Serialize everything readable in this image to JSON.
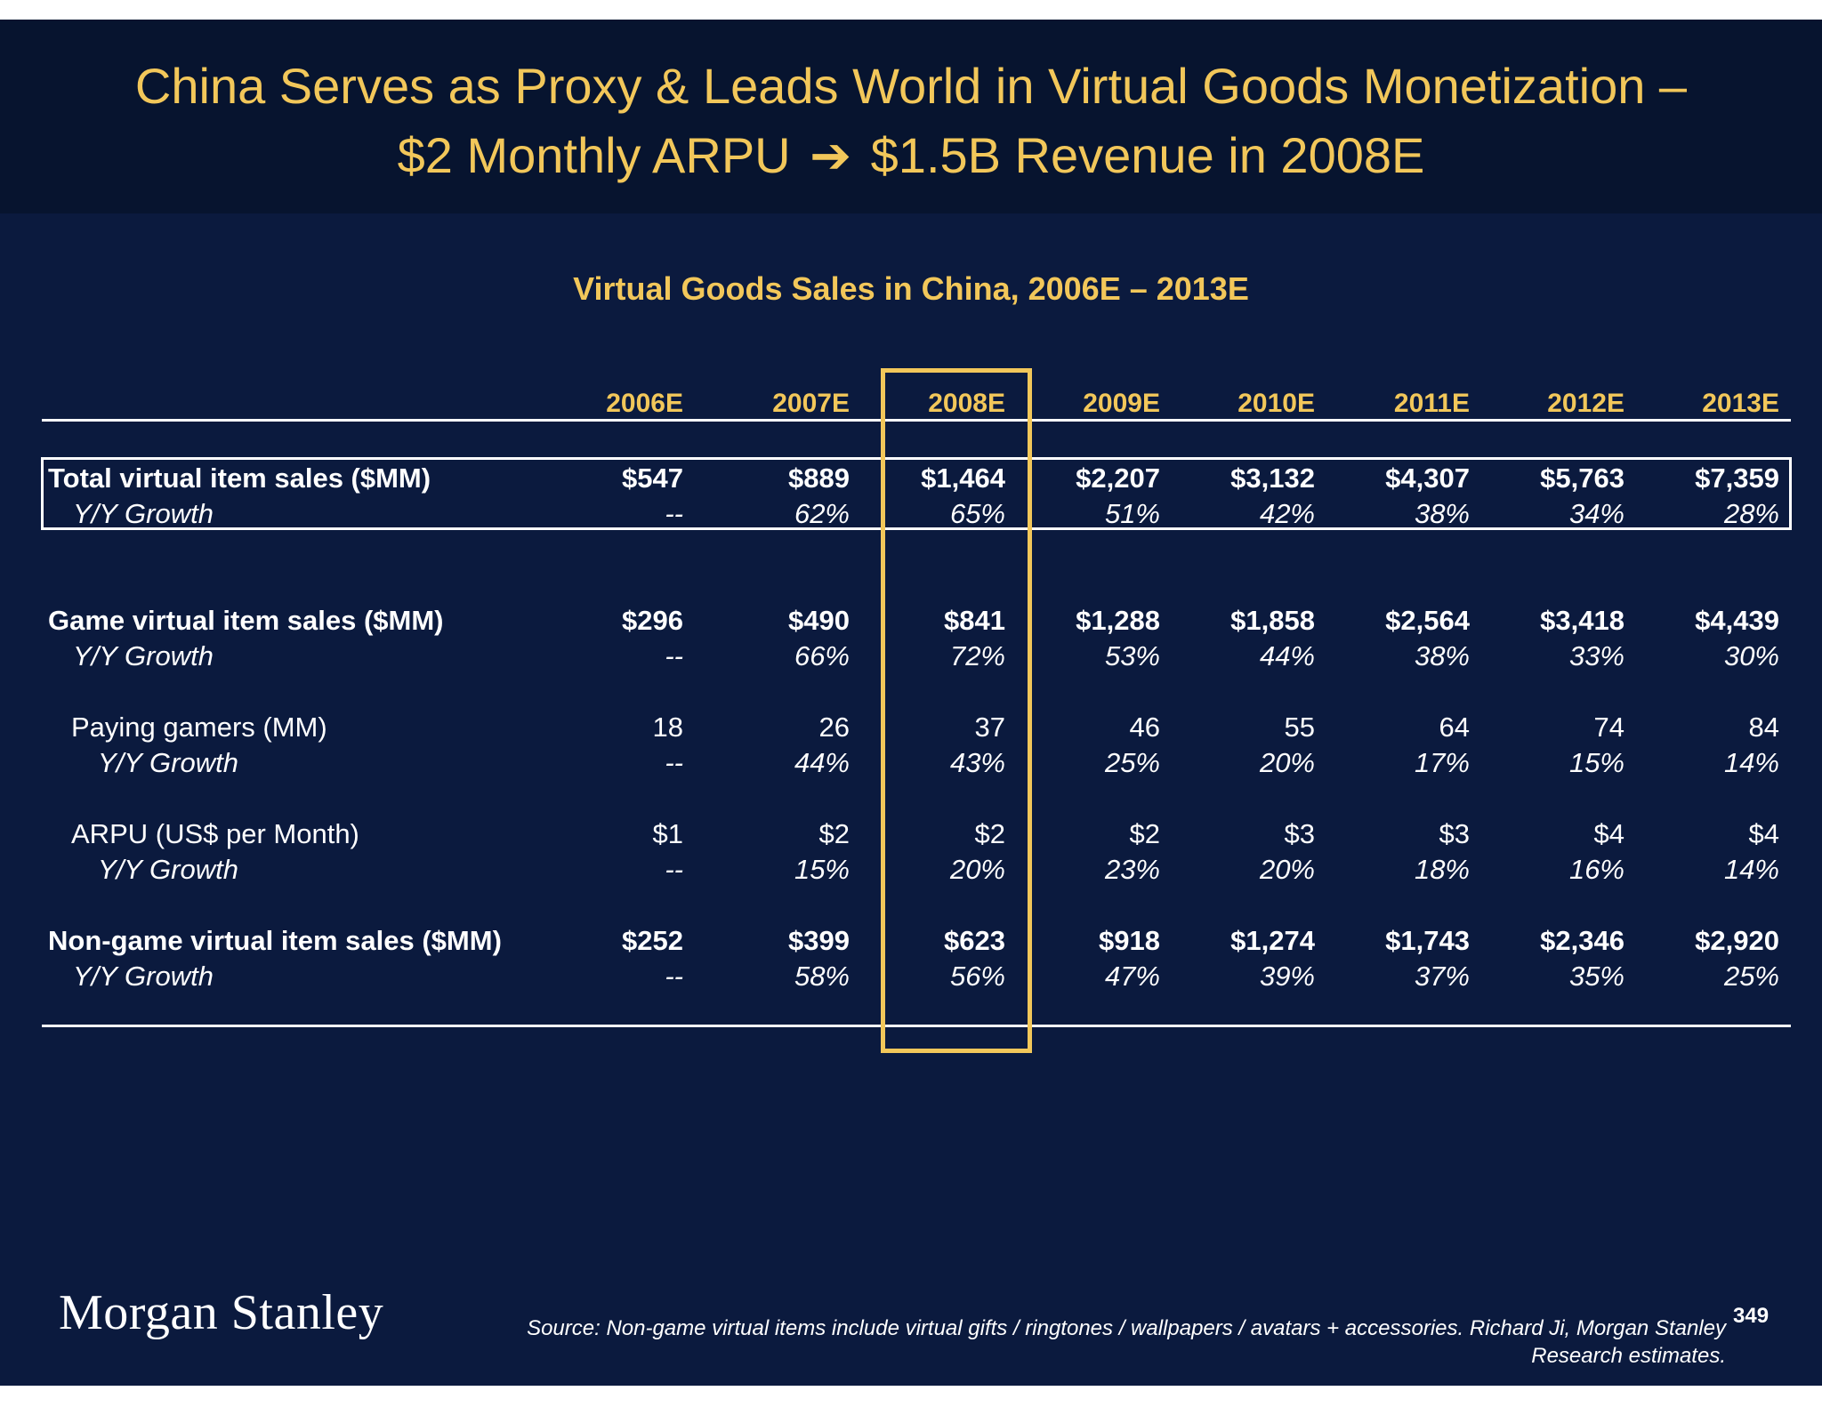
{
  "title_line1": "China Serves as Proxy & Leads World in Virtual Goods Monetization –",
  "title_line2_a": "$2 Monthly ARPU",
  "title_arrow": "➔",
  "title_line2_b": "$1.5B Revenue in 2008E",
  "table_title": "Virtual Goods Sales in China, 2006E – 2013E",
  "years": [
    "2006E",
    "2007E",
    "2008E",
    "2009E",
    "2010E",
    "2011E",
    "2012E",
    "2013E"
  ],
  "rows": [
    {
      "label": "Total virtual item sales ($MM)",
      "values": [
        "$547",
        "$889",
        "$1,464",
        "$2,207",
        "$3,132",
        "$4,307",
        "$5,763",
        "$7,359"
      ]
    },
    {
      "label": "Y/Y Growth",
      "values": [
        "--",
        "62%",
        "65%",
        "51%",
        "42%",
        "38%",
        "34%",
        "28%"
      ]
    },
    {
      "label": "Game virtual item sales ($MM)",
      "values": [
        "$296",
        "$490",
        "$841",
        "$1,288",
        "$1,858",
        "$2,564",
        "$3,418",
        "$4,439"
      ]
    },
    {
      "label": "Y/Y Growth",
      "values": [
        "--",
        "66%",
        "72%",
        "53%",
        "44%",
        "38%",
        "33%",
        "30%"
      ]
    },
    {
      "label": "Paying gamers (MM)",
      "values": [
        "18",
        "26",
        "37",
        "46",
        "55",
        "64",
        "74",
        "84"
      ]
    },
    {
      "label": "Y/Y Growth",
      "values": [
        "--",
        "44%",
        "43%",
        "25%",
        "20%",
        "17%",
        "15%",
        "14%"
      ]
    },
    {
      "label": "ARPU (US$ per Month)",
      "values": [
        "$1",
        "$2",
        "$2",
        "$2",
        "$3",
        "$3",
        "$4",
        "$4"
      ]
    },
    {
      "label": "Y/Y Growth",
      "values": [
        "--",
        "15%",
        "20%",
        "23%",
        "20%",
        "18%",
        "16%",
        "14%"
      ]
    },
    {
      "label": "Non-game virtual item sales ($MM)",
      "values": [
        "$252",
        "$399",
        "$623",
        "$918",
        "$1,274",
        "$1,743",
        "$2,346",
        "$2,920"
      ]
    },
    {
      "label": "Y/Y Growth",
      "values": [
        "--",
        "58%",
        "56%",
        "47%",
        "39%",
        "37%",
        "35%",
        "25%"
      ]
    }
  ],
  "logo": "Morgan Stanley",
  "source_line1": "Source: Non-game virtual items include virtual gifts / ringtones / wallpapers / avatars + accessories. Richard Ji, Morgan Stanley",
  "source_line2": "Research estimates.",
  "page_number": "349"
}
